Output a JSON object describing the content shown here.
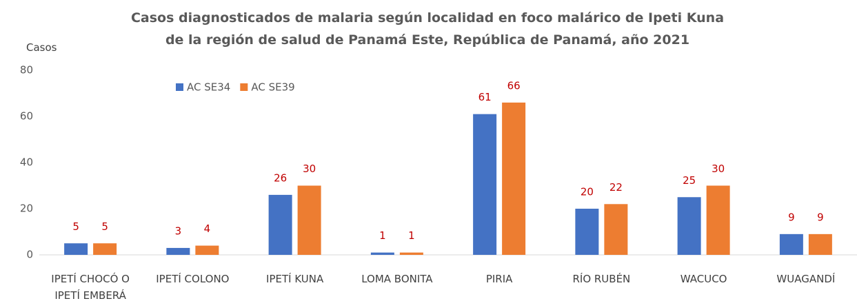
{
  "chart_data": {
    "type": "bar",
    "title": "Casos diagnosticados de malaria según localidad en foco malárico de Ipeti Kuna de la región de salud de Panamá Este, República de Panamá, año 2021",
    "y_label": "Casos",
    "categories": [
      "IPETÍ CHOCÓ O IPETÍ EMBERÁ",
      "IPETÍ COLONO",
      "IPETÍ KUNA",
      "LOMA BONITA",
      "PIRIA",
      "RÍO RUBÉN",
      "WACUCO",
      "WUAGANDÍ"
    ],
    "series": [
      {
        "name": "AC SE34",
        "color": "#4472c4",
        "values": [
          5,
          3,
          26,
          1,
          61,
          20,
          25,
          9
        ]
      },
      {
        "name": "AC SE39",
        "color": "#ed7d31",
        "values": [
          5,
          4,
          30,
          1,
          66,
          22,
          30,
          9
        ]
      }
    ],
    "value_label_color": "#c00000",
    "ylim": [
      0,
      80
    ],
    "yticks": [
      0,
      20,
      40,
      60,
      80
    ],
    "grid": false,
    "legend": "top-left"
  }
}
